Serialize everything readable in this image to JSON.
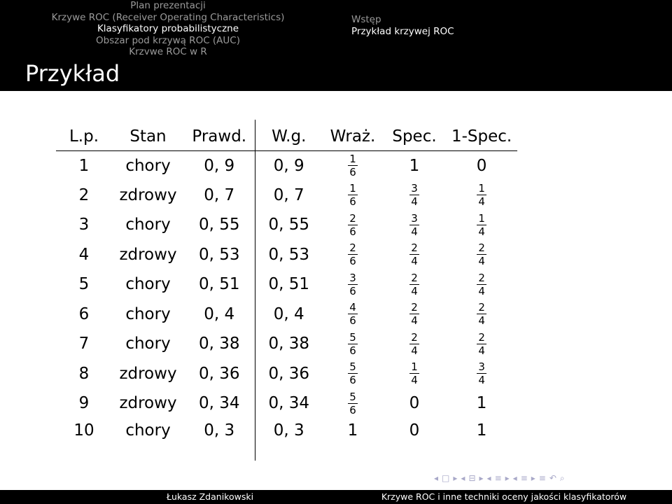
{
  "header": {
    "left_items": [
      {
        "label": "Plan prezentacji",
        "current": false
      },
      {
        "label": "Krzywe ROC (Receiver Operating Characteristics)",
        "current": false
      },
      {
        "label": "Klasyfikatory probabilistyczne",
        "current": true
      },
      {
        "label": "Obszar pod krzywą ROC (AUC)",
        "current": false
      },
      {
        "label": "Krzywe ROC w R",
        "current": false
      }
    ],
    "right_items": [
      {
        "label": "Wstęp",
        "current": false
      },
      {
        "label": "Przykład krzywej ROC",
        "current": true
      }
    ]
  },
  "frame": {
    "title": "Przykład"
  },
  "table": {
    "headers": [
      "L.p.",
      "Stan",
      "Prawd.",
      "W.g.",
      "Wraż.",
      "Spec.",
      "1-Spec."
    ],
    "rows": [
      {
        "lp": "1",
        "stan": "chory",
        "prawd": "0, 9",
        "wg": "0, 9",
        "wraz": [
          "1",
          "6"
        ],
        "spec": "1",
        "one_spec": "0"
      },
      {
        "lp": "2",
        "stan": "zdrowy",
        "prawd": "0, 7",
        "wg": "0, 7",
        "wraz": [
          "1",
          "6"
        ],
        "spec": [
          "3",
          "4"
        ],
        "one_spec": [
          "1",
          "4"
        ]
      },
      {
        "lp": "3",
        "stan": "chory",
        "prawd": "0, 55",
        "wg": "0, 55",
        "wraz": [
          "2",
          "6"
        ],
        "spec": [
          "3",
          "4"
        ],
        "one_spec": [
          "1",
          "4"
        ]
      },
      {
        "lp": "4",
        "stan": "zdrowy",
        "prawd": "0, 53",
        "wg": "0, 53",
        "wraz": [
          "2",
          "6"
        ],
        "spec": [
          "2",
          "4"
        ],
        "one_spec": [
          "2",
          "4"
        ]
      },
      {
        "lp": "5",
        "stan": "chory",
        "prawd": "0, 51",
        "wg": "0, 51",
        "wraz": [
          "3",
          "6"
        ],
        "spec": [
          "2",
          "4"
        ],
        "one_spec": [
          "2",
          "4"
        ]
      },
      {
        "lp": "6",
        "stan": "chory",
        "prawd": "0, 4",
        "wg": "0, 4",
        "wraz": [
          "4",
          "6"
        ],
        "spec": [
          "2",
          "4"
        ],
        "one_spec": [
          "2",
          "4"
        ]
      },
      {
        "lp": "7",
        "stan": "chory",
        "prawd": "0, 38",
        "wg": "0, 38",
        "wraz": [
          "5",
          "6"
        ],
        "spec": [
          "2",
          "4"
        ],
        "one_spec": [
          "2",
          "4"
        ]
      },
      {
        "lp": "8",
        "stan": "zdrowy",
        "prawd": "0, 36",
        "wg": "0, 36",
        "wraz": [
          "5",
          "6"
        ],
        "spec": [
          "1",
          "4"
        ],
        "one_spec": [
          "3",
          "4"
        ]
      },
      {
        "lp": "9",
        "stan": "zdrowy",
        "prawd": "0, 34",
        "wg": "0, 34",
        "wraz": [
          "5",
          "6"
        ],
        "spec": "0",
        "one_spec": "1"
      },
      {
        "lp": "10",
        "stan": "chory",
        "prawd": "0, 3",
        "wg": "0, 3",
        "wraz": "1",
        "spec": "0",
        "one_spec": "1"
      }
    ]
  },
  "beamer_nav": {
    "icons": [
      "nav-prev-arrow",
      "nav-frame-icon",
      "nav-next-arrow",
      "nav-prev-arrow",
      "nav-subsection-icon",
      "nav-next-arrow",
      "nav-prev-arrow",
      "nav-section-list-icon",
      "nav-next-arrow",
      "nav-prev-arrow",
      "nav-section-icon",
      "nav-next-arrow",
      "nav-align-icon",
      "nav-undo-icon",
      "nav-search-icon"
    ],
    "glyphs": [
      "◂",
      "□",
      "▸",
      "◂",
      "⊟",
      "▸",
      "◂",
      "≡",
      "▸",
      "◂",
      "≡",
      "▸",
      "≡",
      "↶",
      "⌕"
    ]
  },
  "footer": {
    "author": "Łukasz Zdanikowski",
    "title": "Krzywe ROC i inne techniki oceny jakości klasyfikatorów"
  }
}
